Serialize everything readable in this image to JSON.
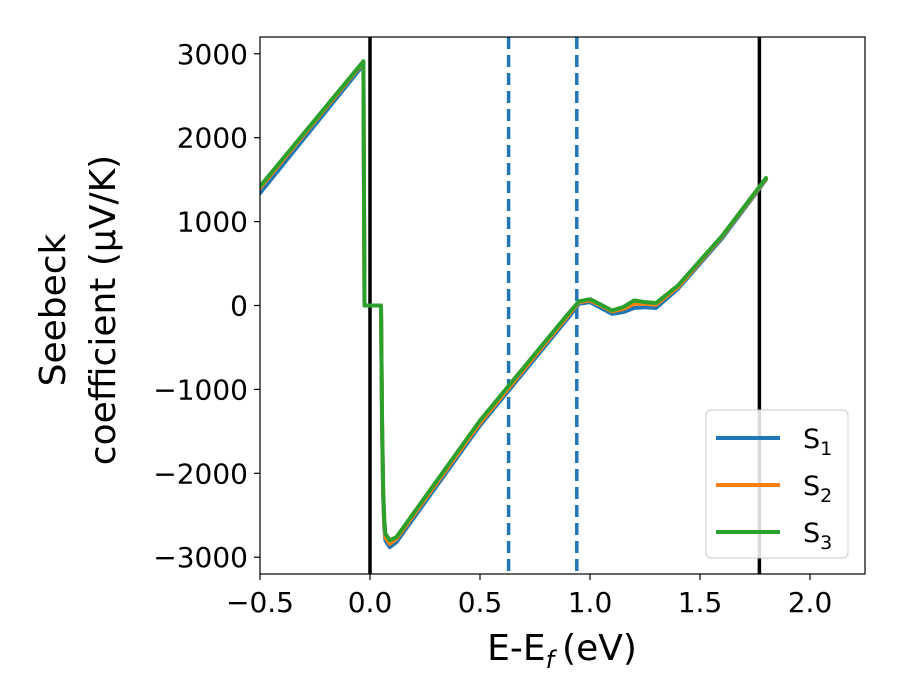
{
  "chart_data": {
    "type": "line",
    "xlabel": "E-E",
    "xlabel_sub": "f",
    "xlabel_unit": "(eV)",
    "ylabel_line1": "Seebeck",
    "ylabel_line2": "coefficient  (μV/K)",
    "xlim": [
      -0.5,
      2.25
    ],
    "ylim": [
      -3200,
      3200
    ],
    "x_ticks": [
      -0.5,
      0.0,
      0.5,
      1.0,
      1.5,
      2.0
    ],
    "x_tick_labels": [
      "−0.5",
      "0.0",
      "0.5",
      "1.0",
      "1.5",
      "2.0"
    ],
    "y_ticks": [
      3000,
      2000,
      1000,
      0,
      -1000,
      -2000,
      -3000
    ],
    "y_tick_labels": [
      "3000",
      "2000",
      "1000",
      "0",
      "−1000",
      "−2000",
      "−3000"
    ],
    "grid": false,
    "legend_position": "lower-right",
    "vlines": [
      {
        "x": 0.0,
        "style": "solid",
        "color": "#000000"
      },
      {
        "x": 0.63,
        "style": "dashed",
        "color": "#1f77b4"
      },
      {
        "x": 0.94,
        "style": "dashed",
        "color": "#1f77b4"
      },
      {
        "x": 1.77,
        "style": "solid",
        "color": "#000000"
      }
    ],
    "series": [
      {
        "name": "S",
        "sub": "1",
        "color": "#1f77b4",
        "x": [
          -0.5,
          -0.03,
          -0.025,
          0.05,
          0.055,
          0.06,
          0.065,
          0.07,
          0.09,
          0.12,
          0.5,
          0.9,
          0.95,
          1.0,
          1.05,
          1.1,
          1.15,
          1.2,
          1.25,
          1.3,
          1.4,
          1.6,
          1.8
        ],
        "y": [
          1340,
          2870,
          0,
          0,
          -1500,
          -2300,
          -2650,
          -2800,
          -2880,
          -2820,
          -1430,
          -150,
          20,
          40,
          -30,
          -100,
          -80,
          -30,
          -20,
          -30,
          200,
          800,
          1500
        ]
      },
      {
        "name": "S",
        "sub": "2",
        "color": "#ff7f0e",
        "x": [
          -0.5,
          -0.03,
          -0.025,
          0.05,
          0.055,
          0.06,
          0.065,
          0.07,
          0.09,
          0.12,
          0.5,
          0.9,
          0.95,
          1.0,
          1.05,
          1.1,
          1.15,
          1.2,
          1.25,
          1.3,
          1.4,
          1.6,
          1.8
        ],
        "y": [
          1400,
          2900,
          0,
          0,
          -1450,
          -2250,
          -2600,
          -2760,
          -2840,
          -2780,
          -1400,
          -120,
          40,
          60,
          0,
          -70,
          -40,
          20,
          20,
          10,
          220,
          820,
          1510
        ]
      },
      {
        "name": "S",
        "sub": "3",
        "color": "#2ca02c",
        "x": [
          -0.5,
          -0.03,
          -0.025,
          0.05,
          0.055,
          0.06,
          0.065,
          0.07,
          0.09,
          0.12,
          0.5,
          0.9,
          0.95,
          1.0,
          1.05,
          1.1,
          1.15,
          1.2,
          1.25,
          1.3,
          1.4,
          1.6,
          1.8
        ],
        "y": [
          1420,
          2910,
          0,
          0,
          -1400,
          -2200,
          -2550,
          -2720,
          -2800,
          -2760,
          -1370,
          -100,
          50,
          75,
          10,
          -60,
          -20,
          60,
          40,
          30,
          240,
          830,
          1520
        ]
      }
    ]
  }
}
